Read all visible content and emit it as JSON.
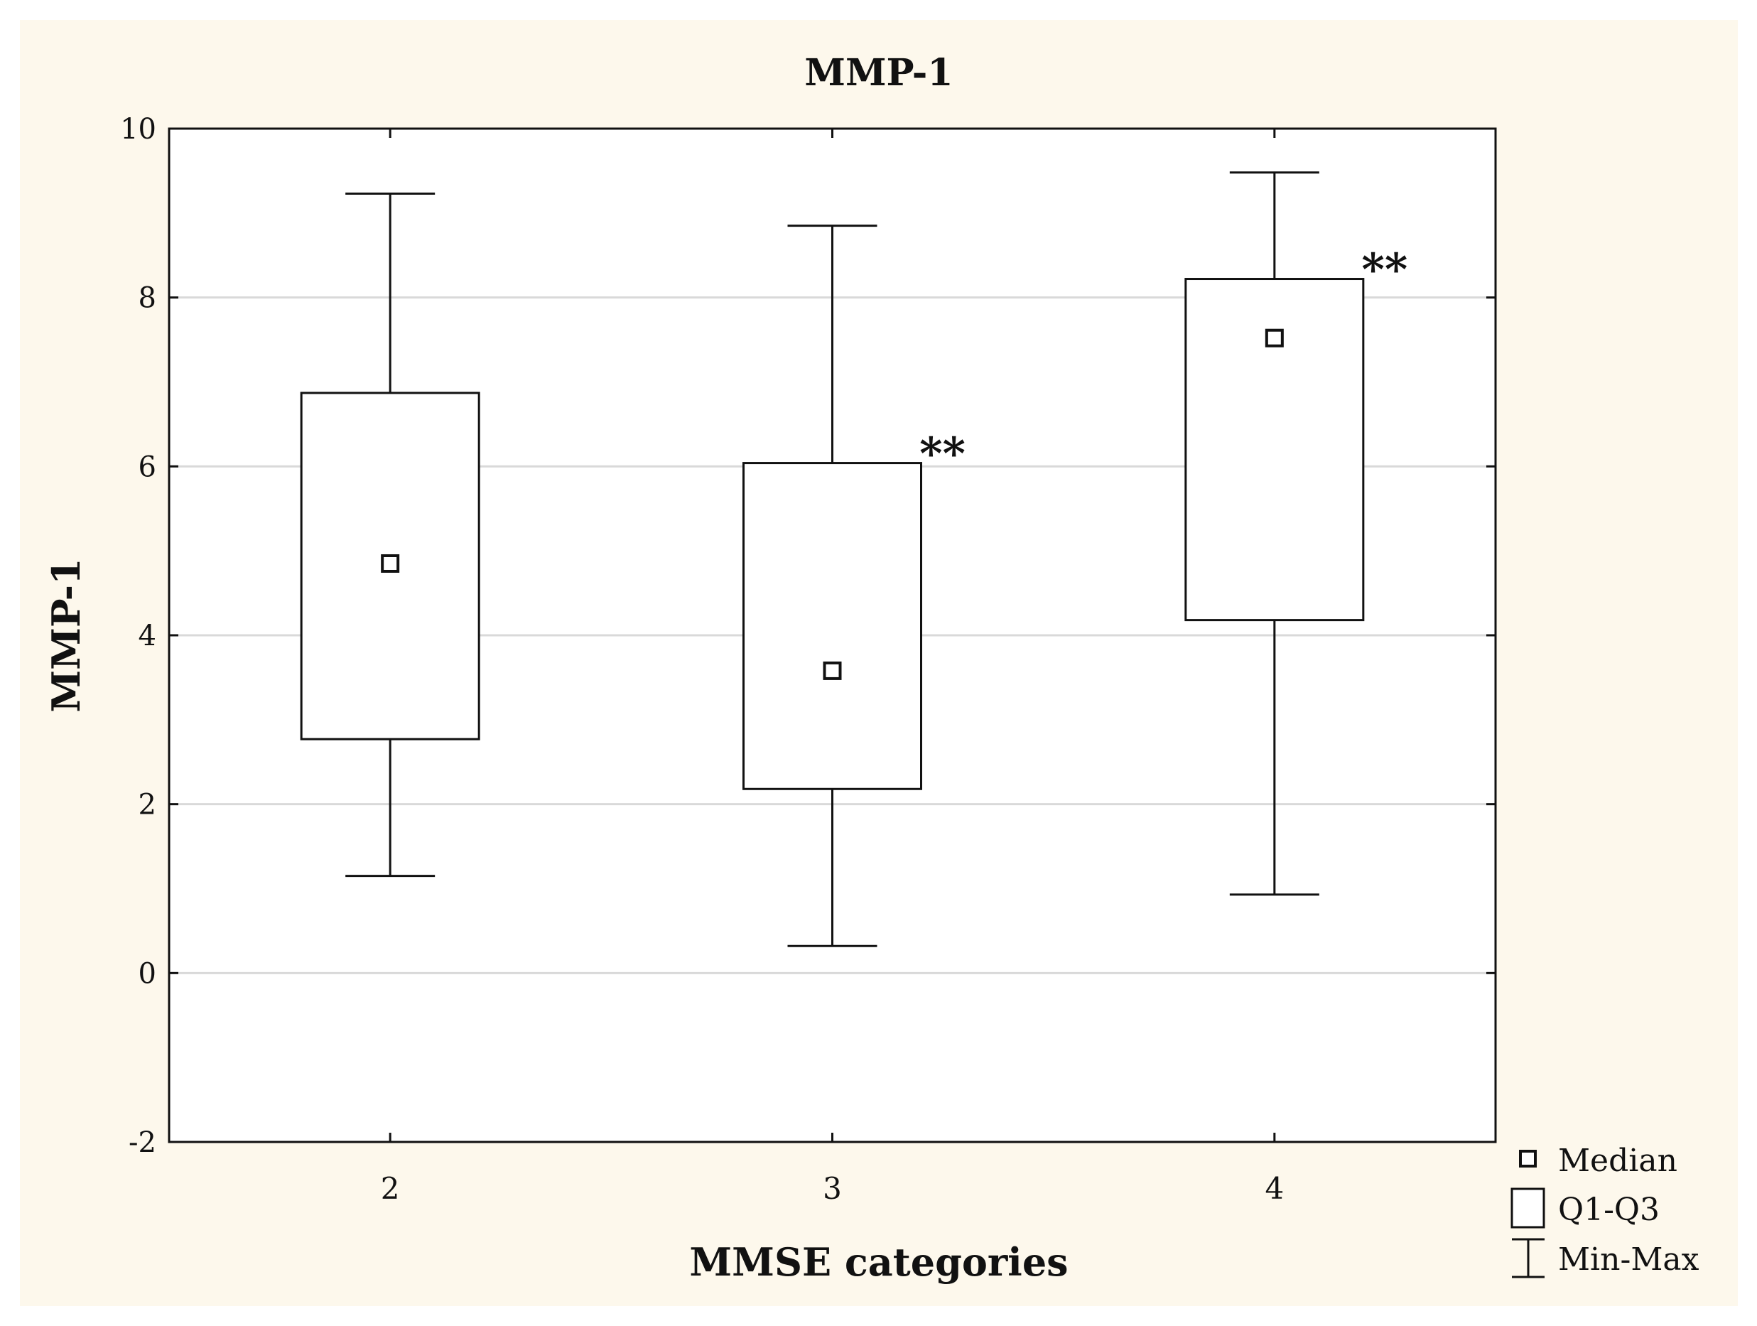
{
  "chart_data": {
    "type": "boxplot",
    "title": "MMP-1",
    "xlabel": "MMSE categories",
    "ylabel": "MMP-1",
    "ylim": [
      -2,
      10
    ],
    "yticks": [
      "-2",
      "0",
      "2",
      "4",
      "6",
      "8",
      "10"
    ],
    "categories": [
      "2",
      "3",
      "4"
    ],
    "boxes": [
      {
        "category": "2",
        "min": 1.15,
        "q1": 2.77,
        "median": 4.85,
        "q3": 6.87,
        "max": 9.23,
        "annotation": ""
      },
      {
        "category": "3",
        "min": 0.32,
        "q1": 2.18,
        "median": 3.58,
        "q3": 6.04,
        "max": 8.85,
        "annotation": "**"
      },
      {
        "category": "4",
        "min": 0.93,
        "q1": 4.18,
        "median": 7.52,
        "q3": 8.22,
        "max": 9.48,
        "annotation": "**"
      }
    ],
    "grid": true,
    "legend_position": "bottom-right",
    "legend": [
      {
        "symbol": "median-square",
        "label": "Median"
      },
      {
        "symbol": "box",
        "label": "Q1-Q3"
      },
      {
        "symbol": "whisker",
        "label": "Min-Max"
      }
    ],
    "colors": {
      "background": "#fdf8ec",
      "plot": "#ffffff",
      "grid": "#d9d9d9",
      "ink": "#111111"
    }
  }
}
